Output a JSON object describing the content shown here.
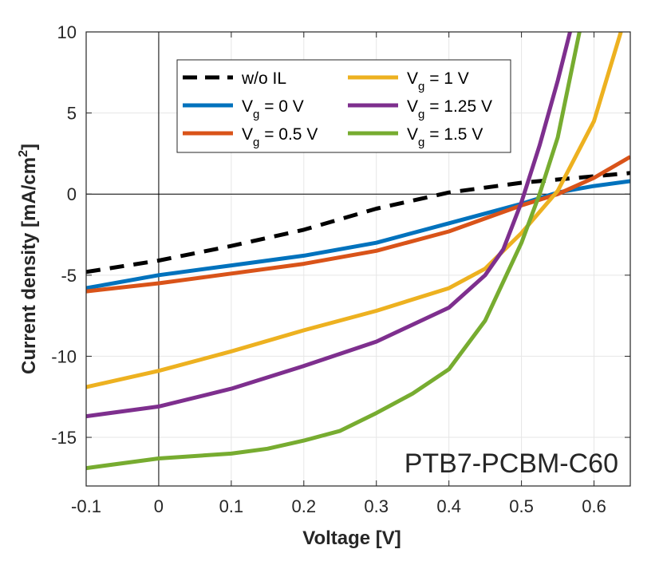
{
  "chart_data": {
    "type": "line",
    "title": "",
    "xlabel": "Voltage [V]",
    "ylabel": "Current density [mA/cm",
    "ylabel_sup": "2",
    "ylabel_end": "]",
    "xlim": [
      -0.1,
      0.65
    ],
    "ylim": [
      -18,
      10
    ],
    "xticks": [
      -0.1,
      0,
      0.1,
      0.2,
      0.3,
      0.4,
      0.5,
      0.6
    ],
    "xtick_labels": [
      "-0.1",
      "0",
      "0.1",
      "0.2",
      "0.3",
      "0.4",
      "0.5",
      "0.6"
    ],
    "yticks": [
      -15,
      -10,
      -5,
      0,
      5,
      10
    ],
    "ytick_labels": [
      "-15",
      "-10",
      "-5",
      "0",
      "5",
      "10"
    ],
    "grid": true,
    "legend_placement": "top-center",
    "annotation": "PTB7-PCBM-C60",
    "series": [
      {
        "name": "w/o IL",
        "color": "#000000",
        "dashed": true,
        "x": [
          -0.1,
          0,
          0.1,
          0.2,
          0.3,
          0.4,
          0.5,
          0.6,
          0.65
        ],
        "y": [
          -4.8,
          -4.1,
          -3.2,
          -2.2,
          -0.9,
          0.1,
          0.7,
          1.1,
          1.3
        ]
      },
      {
        "name": "V",
        "sub": "g",
        "rest": " = 0 V",
        "color": "#0072BD",
        "x": [
          -0.1,
          0,
          0.1,
          0.2,
          0.3,
          0.4,
          0.5,
          0.55,
          0.6,
          0.65
        ],
        "y": [
          -5.8,
          -5.0,
          -4.4,
          -3.8,
          -3.0,
          -1.8,
          -0.6,
          0.1,
          0.5,
          0.8
        ]
      },
      {
        "name": "V",
        "sub": "g",
        "rest": " = 0.5 V",
        "color": "#D95319",
        "x": [
          -0.1,
          0,
          0.1,
          0.2,
          0.3,
          0.4,
          0.5,
          0.55,
          0.6,
          0.65
        ],
        "y": [
          -6.0,
          -5.5,
          -4.9,
          -4.3,
          -3.5,
          -2.3,
          -0.7,
          0.0,
          1.0,
          2.3
        ]
      },
      {
        "name": "V",
        "sub": "g",
        "rest": " = 1 V",
        "color": "#EDB120",
        "x": [
          -0.1,
          0,
          0.1,
          0.2,
          0.3,
          0.4,
          0.45,
          0.5,
          0.55,
          0.6,
          0.637
        ],
        "y": [
          -11.9,
          -10.9,
          -9.7,
          -8.4,
          -7.2,
          -5.8,
          -4.6,
          -2.4,
          0.2,
          4.5,
          10
        ]
      },
      {
        "name": "V",
        "sub": "g",
        "rest": " = 1.25 V",
        "color": "#7E2F8E",
        "x": [
          -0.1,
          0,
          0.1,
          0.2,
          0.3,
          0.4,
          0.45,
          0.475,
          0.5,
          0.525,
          0.55,
          0.567
        ],
        "y": [
          -13.7,
          -13.1,
          -12.0,
          -10.6,
          -9.1,
          -7.0,
          -5.0,
          -3.4,
          -0.5,
          3.0,
          7.0,
          10
        ]
      },
      {
        "name": "V",
        "sub": "g",
        "rest": " = 1.5 V",
        "color": "#77AC30",
        "x": [
          -0.1,
          0,
          0.1,
          0.15,
          0.2,
          0.25,
          0.3,
          0.35,
          0.4,
          0.45,
          0.5,
          0.525,
          0.55,
          0.58
        ],
        "y": [
          -16.9,
          -16.3,
          -16.0,
          -15.7,
          -15.2,
          -14.6,
          -13.5,
          -12.3,
          -10.8,
          -7.8,
          -3.0,
          0.0,
          3.5,
          10
        ]
      }
    ]
  }
}
